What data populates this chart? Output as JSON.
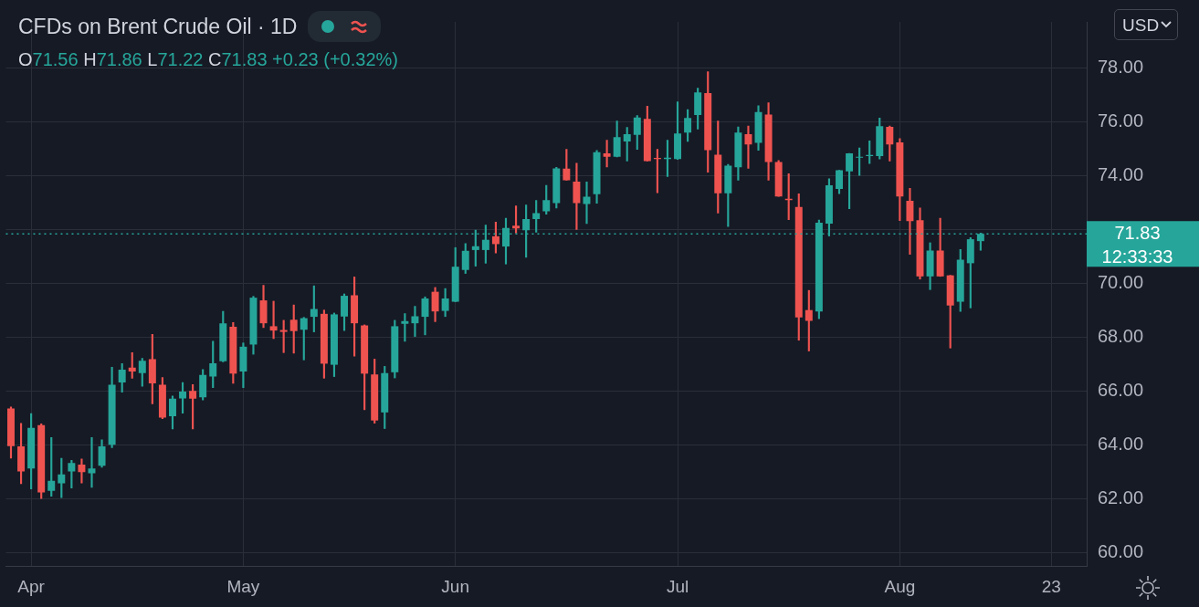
{
  "chart_data": {
    "type": "candlestick",
    "title": "CFDs on Brent Crude Oil · 1D",
    "subtitle": "O71.56 H71.86 L71.22 C71.83 +0.23 (+0.32%)",
    "ylabel": "USD",
    "categories": [
      null,
      null,
      "Apr",
      null,
      null,
      null,
      null,
      null,
      null,
      null,
      null,
      null,
      null,
      null,
      null,
      null,
      null,
      null,
      null,
      null,
      null,
      null,
      null,
      "May",
      null,
      null,
      null,
      null,
      null,
      null,
      null,
      null,
      null,
      null,
      null,
      null,
      null,
      null,
      null,
      null,
      null,
      null,
      null,
      null,
      "Jun",
      null,
      null,
      null,
      null,
      null,
      null,
      null,
      null,
      null,
      null,
      null,
      null,
      null,
      null,
      null,
      null,
      null,
      null,
      null,
      null,
      null,
      "Jul",
      null,
      null,
      null,
      null,
      null,
      null,
      null,
      null,
      null,
      null,
      null,
      null,
      null,
      null,
      null,
      null,
      null,
      null,
      null,
      null,
      null,
      "Aug",
      null,
      null,
      null,
      null,
      null,
      null,
      null,
      null,
      null,
      null,
      null,
      null,
      null,
      null,
      "23",
      null,
      null,
      null
    ],
    "ohlc": [
      [
        65.35,
        65.4,
        63.5,
        63.95
      ],
      [
        63.94,
        64.79,
        62.55,
        63.01
      ],
      [
        63.12,
        65.16,
        62.36,
        64.63
      ],
      [
        64.73,
        64.78,
        62.0,
        62.23
      ],
      [
        62.29,
        64.27,
        62.09,
        62.66
      ],
      [
        62.57,
        63.5,
        62.04,
        62.9
      ],
      [
        63.01,
        63.42,
        62.39,
        63.32
      ],
      [
        63.26,
        63.47,
        62.58,
        62.98
      ],
      [
        62.94,
        64.27,
        62.42,
        63.12
      ],
      [
        63.22,
        64.18,
        63.16,
        63.94
      ],
      [
        64.0,
        66.88,
        63.89,
        66.23
      ],
      [
        66.31,
        67.01,
        65.95,
        66.79
      ],
      [
        66.86,
        67.42,
        66.47,
        66.72
      ],
      [
        66.66,
        67.21,
        66.17,
        67.12
      ],
      [
        67.18,
        68.1,
        65.52,
        66.28
      ],
      [
        66.23,
        66.5,
        64.97,
        65.01
      ],
      [
        65.06,
        65.81,
        64.59,
        65.71
      ],
      [
        65.72,
        66.31,
        65.17,
        65.97
      ],
      [
        66.0,
        66.23,
        64.59,
        65.71
      ],
      [
        65.76,
        66.79,
        65.66,
        66.59
      ],
      [
        66.53,
        67.84,
        66.12,
        67.02
      ],
      [
        67.1,
        68.95,
        67.08,
        68.51
      ],
      [
        68.38,
        68.54,
        66.28,
        66.64
      ],
      [
        66.72,
        67.78,
        66.12,
        67.64
      ],
      [
        67.72,
        69.51,
        67.36,
        69.46
      ],
      [
        69.36,
        69.92,
        68.35,
        68.51
      ],
      [
        68.4,
        69.33,
        67.94,
        68.24
      ],
      [
        68.26,
        68.62,
        67.42,
        68.19
      ],
      [
        68.64,
        69.19,
        67.4,
        68.22
      ],
      [
        68.27,
        68.73,
        67.15,
        68.7
      ],
      [
        68.75,
        69.9,
        68.19,
        69.04
      ],
      [
        68.86,
        69.0,
        66.47,
        67.01
      ],
      [
        66.97,
        68.89,
        66.53,
        68.84
      ],
      [
        68.76,
        69.6,
        68.24,
        69.53
      ],
      [
        69.55,
        70.23,
        67.29,
        68.51
      ],
      [
        68.43,
        68.45,
        65.3,
        66.64
      ],
      [
        66.61,
        67.18,
        64.8,
        64.9
      ],
      [
        65.2,
        66.91,
        64.6,
        66.66
      ],
      [
        66.69,
        68.62,
        66.48,
        68.4
      ],
      [
        68.49,
        68.87,
        67.84,
        68.59
      ],
      [
        68.51,
        69.14,
        68.02,
        68.77
      ],
      [
        68.75,
        69.49,
        68.08,
        69.43
      ],
      [
        69.68,
        69.84,
        68.57,
        68.95
      ],
      [
        68.97,
        69.8,
        68.76,
        69.43
      ],
      [
        69.31,
        71.32,
        69.31,
        70.61
      ],
      [
        70.49,
        71.47,
        70.36,
        71.2
      ],
      [
        71.23,
        71.97,
        70.63,
        71.37
      ],
      [
        71.23,
        72.16,
        70.74,
        71.61
      ],
      [
        71.74,
        72.27,
        71.12,
        71.45
      ],
      [
        71.36,
        72.41,
        70.71,
        72.05
      ],
      [
        72.13,
        72.87,
        71.86,
        72.03
      ],
      [
        71.96,
        72.9,
        70.96,
        72.38
      ],
      [
        72.38,
        73.07,
        71.89,
        72.6
      ],
      [
        72.67,
        73.63,
        72.56,
        73.08
      ],
      [
        72.97,
        74.3,
        72.79,
        74.26
      ],
      [
        74.25,
        74.97,
        73.82,
        73.82
      ],
      [
        73.77,
        74.45,
        71.99,
        72.97
      ],
      [
        72.94,
        73.76,
        72.21,
        73.21
      ],
      [
        73.3,
        74.93,
        72.97,
        74.86
      ],
      [
        74.82,
        75.31,
        74.31,
        74.69
      ],
      [
        74.69,
        76.02,
        74.69,
        75.42
      ],
      [
        75.26,
        75.78,
        74.53,
        75.53
      ],
      [
        75.51,
        76.22,
        74.97,
        76.15
      ],
      [
        76.1,
        76.57,
        74.53,
        74.53
      ],
      [
        74.65,
        74.97,
        73.36,
        74.61
      ],
      [
        74.61,
        75.31,
        73.96,
        74.66
      ],
      [
        74.61,
        76.73,
        74.59,
        75.56
      ],
      [
        75.59,
        76.44,
        75.26,
        76.13
      ],
      [
        76.24,
        77.24,
        75.72,
        77.08
      ],
      [
        77.06,
        77.85,
        74.12,
        74.94
      ],
      [
        74.77,
        76.02,
        72.6,
        73.34
      ],
      [
        73.34,
        74.41,
        72.1,
        74.36
      ],
      [
        74.3,
        75.8,
        73.82,
        75.59
      ],
      [
        75.53,
        75.83,
        74.26,
        75.15
      ],
      [
        75.21,
        76.59,
        74.93,
        76.35
      ],
      [
        76.26,
        76.7,
        73.82,
        74.5
      ],
      [
        74.5,
        74.55,
        73.22,
        73.22
      ],
      [
        73.13,
        74.06,
        72.36,
        73.08
      ],
      [
        72.83,
        73.32,
        67.88,
        68.73
      ],
      [
        69.0,
        69.73,
        67.48,
        68.6
      ],
      [
        68.95,
        72.34,
        68.68,
        72.24
      ],
      [
        72.21,
        73.88,
        71.75,
        73.63
      ],
      [
        73.5,
        74.19,
        73.32,
        74.19
      ],
      [
        74.15,
        74.82,
        72.76,
        74.82
      ],
      [
        74.66,
        75.02,
        74.0,
        74.69
      ],
      [
        74.72,
        75.28,
        74.44,
        74.76
      ],
      [
        74.72,
        76.13,
        74.61,
        75.83
      ],
      [
        75.8,
        75.83,
        74.53,
        75.15
      ],
      [
        75.23,
        75.37,
        72.32,
        73.22
      ],
      [
        73.06,
        73.52,
        71.07,
        72.3
      ],
      [
        72.34,
        72.79,
        70.15,
        70.25
      ],
      [
        70.25,
        71.5,
        69.76,
        71.21
      ],
      [
        71.21,
        72.41,
        70.25,
        70.25
      ],
      [
        70.29,
        70.29,
        67.59,
        69.17
      ],
      [
        69.31,
        71.25,
        68.95,
        70.87
      ],
      [
        70.74,
        71.69,
        69.08,
        71.63
      ],
      [
        71.56,
        71.86,
        71.22,
        71.83
      ],
      null,
      null,
      null,
      null,
      null,
      null,
      null,
      null,
      null,
      null
    ],
    "colors": [
      "#ef5350",
      "#ef5350",
      "#26a69a",
      "#ef5350",
      "#26a69a",
      "#26a69a",
      "#26a69a",
      "#ef5350",
      "#26a69a",
      "#26a69a",
      "#26a69a",
      "#26a69a",
      "#ef5350",
      "#26a69a",
      "#ef5350",
      "#ef5350",
      "#26a69a",
      "#26a69a",
      "#ef5350",
      "#26a69a",
      "#26a69a",
      "#26a69a",
      "#ef5350",
      "#26a69a",
      "#26a69a",
      "#ef5350",
      "#ef5350",
      "#ef5350",
      "#ef5350",
      "#26a69a",
      "#26a69a",
      "#ef5350",
      "#26a69a",
      "#26a69a",
      "#ef5350",
      "#ef5350",
      "#ef5350",
      "#26a69a",
      "#26a69a",
      "#26a69a",
      "#26a69a",
      "#26a69a",
      "#ef5350",
      "#26a69a",
      "#26a69a",
      "#26a69a",
      "#26a69a",
      "#26a69a",
      "#ef5350",
      "#26a69a",
      "#ef5350",
      "#26a69a",
      "#26a69a",
      "#26a69a",
      "#26a69a",
      "#ef5350",
      "#ef5350",
      "#26a69a",
      "#26a69a",
      "#ef5350",
      "#26a69a",
      "#26a69a",
      "#26a69a",
      "#ef5350",
      "#ef5350",
      "#26a69a",
      "#26a69a",
      "#26a69a",
      "#26a69a",
      "#ef5350",
      "#ef5350",
      "#26a69a",
      "#26a69a",
      "#ef5350",
      "#26a69a",
      "#ef5350",
      "#ef5350",
      "#ef5350",
      "#ef5350",
      "#ef5350",
      "#26a69a",
      "#26a69a",
      "#26a69a",
      "#26a69a",
      "#26a69a",
      "#26a69a",
      "#26a69a",
      "#ef5350",
      "#ef5350",
      "#ef5350",
      "#ef5350",
      "#26a69a",
      "#ef5350",
      "#ef5350",
      "#26a69a",
      "#26a69a",
      "#26a69a",
      null,
      null,
      null,
      null,
      null,
      null,
      null,
      null,
      null,
      null
    ],
    "ylim": [
      59.5,
      79.7
    ],
    "yticks": [
      {
        "value": 60,
        "label": "60.00"
      },
      {
        "value": 62,
        "label": "62.00"
      },
      {
        "value": 64,
        "label": "64.00"
      },
      {
        "value": 66,
        "label": "66.00"
      },
      {
        "value": 68,
        "label": "68.00"
      },
      {
        "value": 70,
        "label": "70.00"
      },
      {
        "value": 72,
        "label": null
      },
      {
        "value": 74,
        "label": "74.00"
      },
      {
        "value": 76,
        "label": "76.00"
      },
      {
        "value": 78,
        "label": "78.00"
      }
    ],
    "ref_lines": [
      {
        "axis": "y",
        "value": 71.83,
        "label": "71.83",
        "color": "#26a69a",
        "line_style": "dotted"
      }
    ],
    "annotations": [
      "12:33:33"
    ],
    "grid": true,
    "legend": false
  }
}
